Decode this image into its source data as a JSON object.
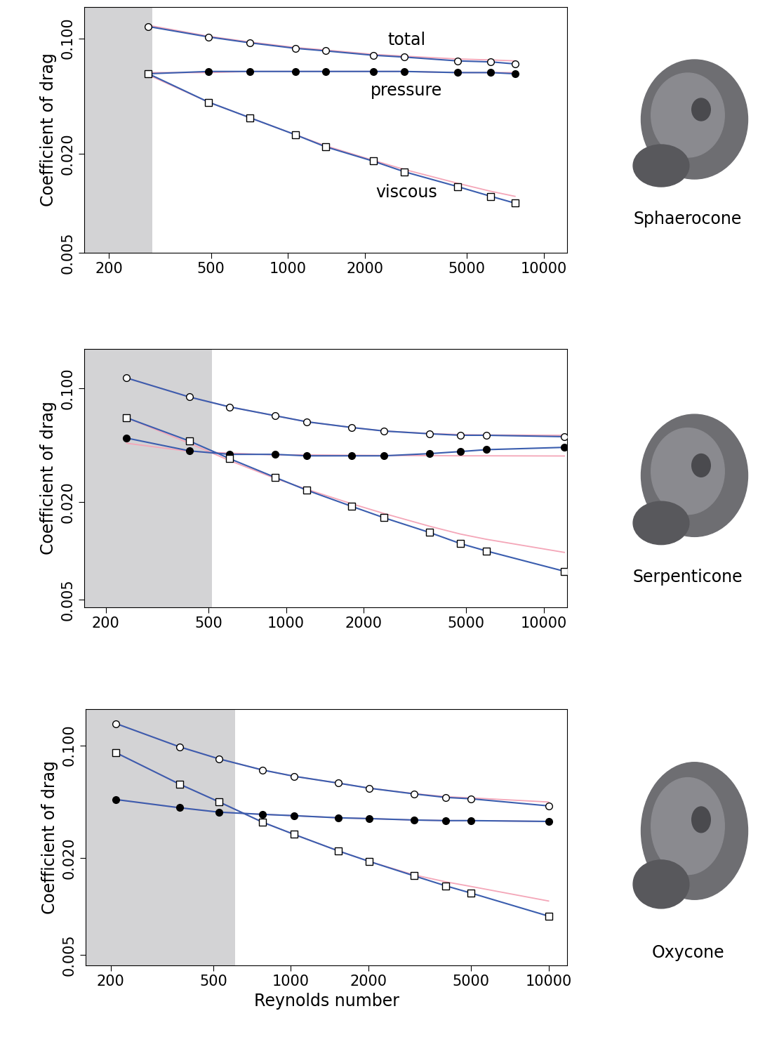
{
  "chart_data": [
    {
      "type": "line",
      "log": true,
      "ylabel": "Coefficient of drag",
      "xlim": [
        160,
        12300
      ],
      "ylim": [
        0.005,
        0.155
      ],
      "xticks": [
        200,
        500,
        1000,
        2000,
        5000,
        10000
      ],
      "yticks": [
        0.005,
        {
          "value": 0.02,
          "label": "0.020"
        },
        {
          "value": 0.1,
          "label": "0.100"
        }
      ],
      "shaded_x": [
        160,
        295
      ],
      "shape_label": "Sphaerocone",
      "annotations": [
        {
          "text": "total",
          "x": 2900,
          "y": 0.098
        },
        {
          "text": "pressure",
          "x": 2900,
          "y": 0.048
        },
        {
          "text": "viscous",
          "x": 2900,
          "y": 0.0116
        }
      ],
      "x": [
        285,
        490,
        710,
        1070,
        1400,
        2150,
        2850,
        4600,
        6200,
        7700
      ],
      "series": [
        {
          "type": "line",
          "color": "#f4a6b8",
          "line_style": "solid",
          "values": [
            0.12,
            0.103,
            0.095,
            0.088,
            0.085,
            0.08,
            0.078,
            0.075,
            0.074,
            0.073
          ]
        },
        {
          "type": "line",
          "color": "#f4a6b8",
          "line_style": "solid",
          "values": [
            0.062,
            0.062,
            0.063,
            0.063,
            0.063,
            0.063,
            0.063,
            0.062,
            0.062,
            0.062
          ]
        },
        {
          "type": "line",
          "color": "#f4a6b8",
          "line_style": "solid",
          "values": [
            0.06,
            0.041,
            0.033,
            0.026,
            0.0223,
            0.0182,
            0.016,
            0.0132,
            0.0118,
            0.011
          ]
        },
        {
          "type": "line",
          "color": "#3a5dae",
          "marker": "open_circle",
          "line_style": "solid",
          "values": [
            0.118,
            0.102,
            0.094,
            0.087,
            0.084,
            0.079,
            0.077,
            0.073,
            0.072,
            0.07
          ]
        },
        {
          "type": "line",
          "color": "#3a5dae",
          "marker": "circle",
          "line_style": "solid",
          "values": [
            0.061,
            0.063,
            0.063,
            0.063,
            0.063,
            0.063,
            0.063,
            0.062,
            0.062,
            0.061
          ]
        },
        {
          "type": "line",
          "color": "#3a5dae",
          "marker": "open_square",
          "line_style": "solid",
          "values": [
            0.061,
            0.041,
            0.033,
            0.026,
            0.022,
            0.018,
            0.0155,
            0.0126,
            0.011,
            0.01
          ]
        }
      ]
    },
    {
      "type": "line",
      "log": true,
      "ylabel": "Coefficient of drag",
      "xlim": [
        165,
        12300
      ],
      "ylim": [
        0.0045,
        0.175
      ],
      "xticks": [
        200,
        500,
        1000,
        2000,
        5000,
        10000
      ],
      "yticks": [
        0.005,
        {
          "value": 0.02,
          "label": "0.020"
        },
        {
          "value": 0.1,
          "label": "0.100"
        }
      ],
      "shaded_x": [
        165,
        515
      ],
      "shape_label": "Serpenticone",
      "x": [
        241,
        422,
        604,
        906,
        1200,
        1800,
        2400,
        3600,
        4750,
        5980,
        12000
      ],
      "series": [
        {
          "type": "line",
          "color": "#f4a6b8",
          "line_style": "solid",
          "values": [
            0.116,
            0.0886,
            0.077,
            0.068,
            0.0624,
            0.0575,
            0.0547,
            0.0528,
            0.052,
            0.0517,
            0.0515
          ]
        },
        {
          "type": "line",
          "color": "#f4a6b8",
          "line_style": "solid",
          "values": [
            0.046,
            0.041,
            0.04,
            0.039,
            0.039,
            0.0388,
            0.0387,
            0.0386,
            0.0385,
            0.0385,
            0.0384
          ]
        },
        {
          "type": "line",
          "color": "#f4a6b8",
          "line_style": "solid",
          "values": [
            0.066,
            0.046,
            0.036,
            0.028,
            0.024,
            0.0195,
            0.017,
            0.0142,
            0.0127,
            0.0118,
            0.0098
          ]
        },
        {
          "type": "line",
          "color": "#3a5dae",
          "marker": "open_circle",
          "line_style": "solid",
          "values": [
            0.116,
            0.0886,
            0.077,
            0.068,
            0.0624,
            0.0575,
            0.0547,
            0.0526,
            0.0515,
            0.0515,
            0.0505
          ]
        },
        {
          "type": "line",
          "color": "#3a5dae",
          "marker": "circle",
          "line_style": "solid",
          "values": [
            0.0495,
            0.0413,
            0.0393,
            0.0393,
            0.0385,
            0.0385,
            0.0385,
            0.0397,
            0.0409,
            0.042,
            0.0434
          ]
        },
        {
          "type": "line",
          "color": "#3a5dae",
          "marker": "open_square",
          "line_style": "solid",
          "values": [
            0.066,
            0.0475,
            0.037,
            0.0284,
            0.0237,
            0.0188,
            0.016,
            0.013,
            0.0111,
            0.01,
            0.0075
          ]
        }
      ]
    },
    {
      "type": "line",
      "log": true,
      "xlabel": "Reynolds number",
      "ylabel": "Coefficient of drag",
      "xlim": [
        160,
        11800
      ],
      "ylim": [
        0.0043,
        0.168
      ],
      "xticks": [
        200,
        500,
        1000,
        2000,
        5000,
        10000
      ],
      "yticks": [
        0.005,
        {
          "value": 0.02,
          "label": "0.020"
        },
        {
          "value": 0.1,
          "label": "0.100"
        }
      ],
      "shaded_x": [
        160,
        610
      ],
      "shape_label": "Oxycone",
      "x": [
        210,
        370,
        525,
        775,
        1030,
        1530,
        2020,
        3000,
        4000,
        5000,
        10000
      ],
      "series": [
        {
          "type": "line",
          "color": "#f4a6b8",
          "line_style": "solid",
          "values": [
            0.1366,
            0.098,
            0.0826,
            0.0704,
            0.0643,
            0.0583,
            0.0542,
            0.0502,
            0.048,
            0.0472,
            0.0445
          ]
        },
        {
          "type": "line",
          "color": "#f4a6b8",
          "line_style": "solid",
          "values": [
            0.0461,
            0.041,
            0.0385,
            0.0373,
            0.0366,
            0.0355,
            0.0351,
            0.0344,
            0.0341,
            0.0341,
            0.0337
          ]
        },
        {
          "type": "line",
          "color": "#f4a6b8",
          "line_style": "solid",
          "values": [
            0.09,
            0.0575,
            0.0447,
            0.0334,
            0.028,
            0.0221,
            0.019,
            0.0157,
            0.0142,
            0.0133,
            0.0108
          ]
        },
        {
          "type": "line",
          "color": "#3a5dae",
          "marker": "open_circle",
          "line_style": "solid",
          "values": [
            0.1366,
            0.098,
            0.0826,
            0.0704,
            0.0643,
            0.0583,
            0.0542,
            0.05,
            0.0475,
            0.0466,
            0.0421
          ]
        },
        {
          "type": "line",
          "color": "#3a5dae",
          "marker": "circle",
          "line_style": "solid",
          "values": [
            0.0461,
            0.041,
            0.0385,
            0.0373,
            0.0366,
            0.0355,
            0.0351,
            0.0344,
            0.0341,
            0.0341,
            0.0337
          ]
        },
        {
          "type": "line",
          "color": "#3a5dae",
          "marker": "open_square",
          "line_style": "solid",
          "values": [
            0.09,
            0.0575,
            0.0447,
            0.0334,
            0.028,
            0.0221,
            0.019,
            0.0155,
            0.0134,
            0.0121,
            0.0087
          ]
        }
      ]
    }
  ]
}
